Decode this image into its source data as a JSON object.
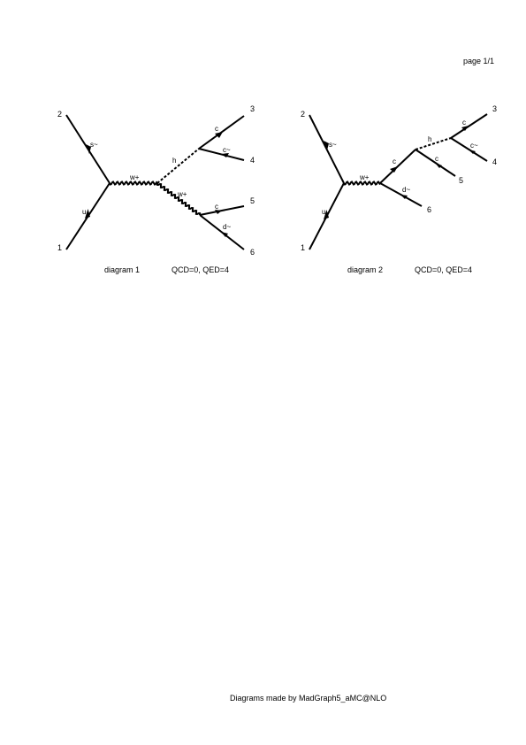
{
  "page_label": "page 1/1",
  "footer": "Diagrams made by MadGraph5_aMC@NLO",
  "diagrams": [
    {
      "label": "diagram 1",
      "orders": "QCD=0, QED=4",
      "ext": {
        "n1": "1",
        "n2": "2",
        "n3": "3",
        "n4": "4",
        "n5": "5",
        "n6": "6"
      },
      "particles": {
        "p_u": "u",
        "p_sbar": "s~",
        "p_w1": "w+",
        "p_h": "h",
        "p_w2": "w+",
        "p_c3": "c",
        "p_cbar4": "c~",
        "p_c5": "c",
        "p_dbar6": "d~"
      }
    },
    {
      "label": "diagram 2",
      "orders": "QCD=0, QED=4",
      "ext": {
        "n1": "1",
        "n2": "2",
        "n3": "3",
        "n4": "4",
        "n5": "5",
        "n6": "6"
      },
      "particles": {
        "p_u": "u",
        "p_sbar": "s~",
        "p_w": "w+",
        "p_c_int": "c",
        "p_dbar6": "d~",
        "p_h": "h",
        "p_c5": "c",
        "p_c3": "c",
        "p_cbar4": "c~"
      }
    }
  ]
}
